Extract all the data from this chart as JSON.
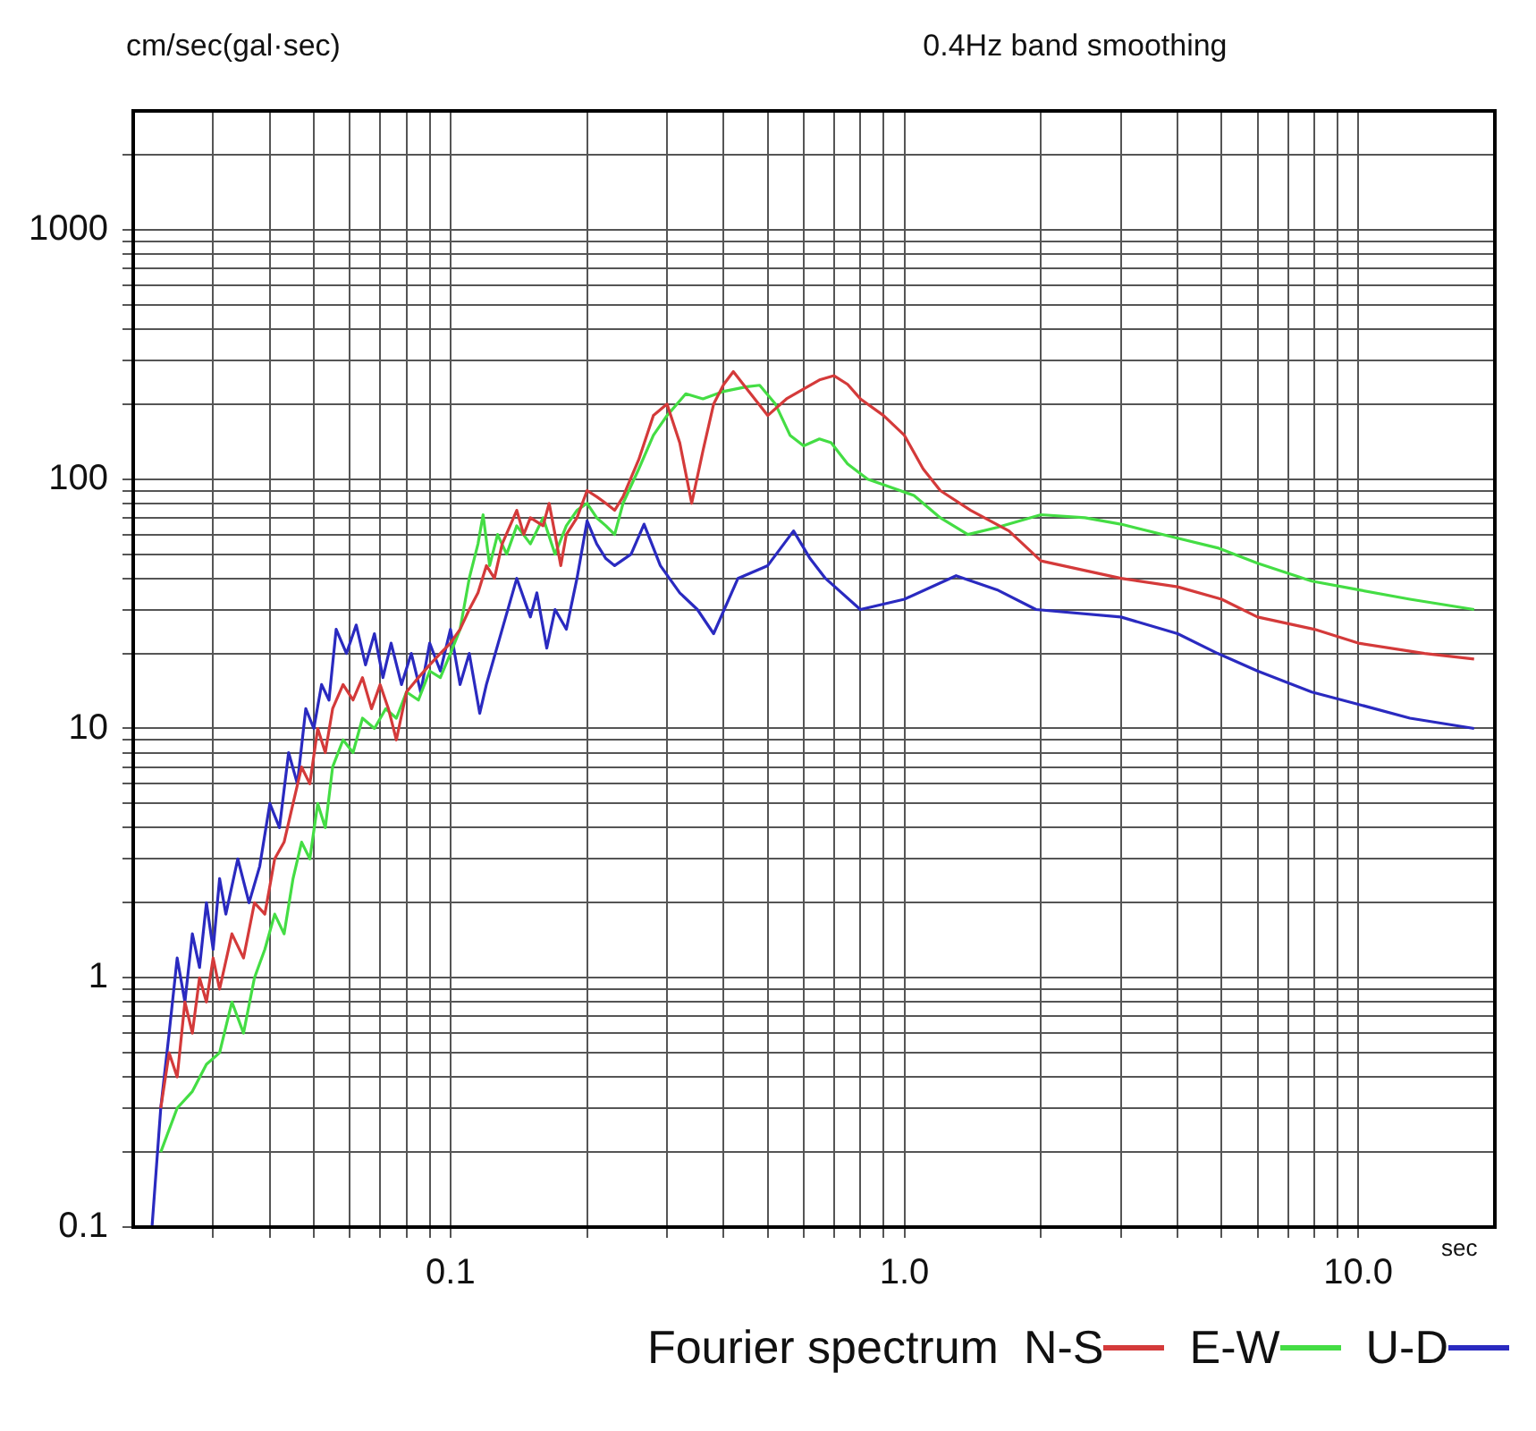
{
  "chart_data": {
    "type": "line",
    "subtitle": "0.4Hz band smoothing",
    "ylabel": "cm/sec(gal·sec)",
    "xlabel": "sec",
    "legend_title": "Fourier spectrum",
    "log": "xy",
    "grid": true,
    "legend": "bottom right",
    "xlim": [
      0.02,
      20
    ],
    "ylim": [
      0.1,
      3000
    ],
    "xticks": [
      {
        "value": 0.03,
        "label": null
      },
      {
        "value": 0.04,
        "label": null
      },
      {
        "value": 0.05,
        "label": null
      },
      {
        "value": 0.06,
        "label": null
      },
      {
        "value": 0.07,
        "label": null
      },
      {
        "value": 0.08,
        "label": null
      },
      {
        "value": 0.09,
        "label": null
      },
      0.1,
      {
        "value": 0.2,
        "label": null
      },
      {
        "value": 0.3,
        "label": null
      },
      {
        "value": 0.4,
        "label": null
      },
      {
        "value": 0.5,
        "label": null
      },
      {
        "value": 0.6,
        "label": null
      },
      {
        "value": 0.7,
        "label": null
      },
      {
        "value": 0.8,
        "label": null
      },
      {
        "value": 0.9,
        "label": null
      },
      {
        "value": 1,
        "label": "1.0"
      },
      {
        "value": 2,
        "label": null
      },
      {
        "value": 3,
        "label": null
      },
      {
        "value": 4,
        "label": null
      },
      {
        "value": 5,
        "label": null
      },
      {
        "value": 6,
        "label": null
      },
      {
        "value": 7,
        "label": null
      },
      {
        "value": 8,
        "label": null
      },
      {
        "value": 9,
        "label": null
      },
      {
        "value": 10,
        "label": "10.0"
      }
    ],
    "yticks": [
      0.1,
      {
        "value": 0.2,
        "label": null
      },
      {
        "value": 0.3,
        "label": null
      },
      {
        "value": 0.4,
        "label": null
      },
      {
        "value": 0.5,
        "label": null
      },
      {
        "value": 0.6,
        "label": null
      },
      {
        "value": 0.7,
        "label": null
      },
      {
        "value": 0.8,
        "label": null
      },
      {
        "value": 0.9,
        "label": null
      },
      1,
      {
        "value": 2,
        "label": null
      },
      {
        "value": 3,
        "label": null
      },
      {
        "value": 4,
        "label": null
      },
      {
        "value": 5,
        "label": null
      },
      {
        "value": 6,
        "label": null
      },
      {
        "value": 7,
        "label": null
      },
      {
        "value": 8,
        "label": null
      },
      {
        "value": 9,
        "label": null
      },
      10,
      {
        "value": 20,
        "label": null
      },
      {
        "value": 30,
        "label": null
      },
      {
        "value": 40,
        "label": null
      },
      {
        "value": 50,
        "label": null
      },
      {
        "value": 60,
        "label": null
      },
      {
        "value": 70,
        "label": null
      },
      {
        "value": 80,
        "label": null
      },
      {
        "value": 90,
        "label": null
      },
      100,
      {
        "value": 200,
        "label": null
      },
      {
        "value": 300,
        "label": null
      },
      {
        "value": 400,
        "label": null
      },
      {
        "value": 500,
        "label": null
      },
      {
        "value": 600,
        "label": null
      },
      {
        "value": 700,
        "label": null
      },
      {
        "value": 800,
        "label": null
      },
      {
        "value": 900,
        "label": null
      },
      1000,
      {
        "value": 2000,
        "label": null
      }
    ],
    "series": [
      {
        "name": "N-S",
        "color": "#d43a3a",
        "x": [
          0.023,
          0.024,
          0.025,
          0.026,
          0.027,
          0.028,
          0.029,
          0.03,
          0.031,
          0.033,
          0.035,
          0.037,
          0.039,
          0.041,
          0.043,
          0.045,
          0.047,
          0.049,
          0.051,
          0.053,
          0.055,
          0.058,
          0.061,
          0.064,
          0.067,
          0.07,
          0.073,
          0.076,
          0.08,
          0.085,
          0.09,
          0.095,
          0.1,
          0.105,
          0.11,
          0.115,
          0.12,
          0.125,
          0.13,
          0.14,
          0.145,
          0.15,
          0.16,
          0.165,
          0.17,
          0.175,
          0.18,
          0.19,
          0.2,
          0.21,
          0.22,
          0.23,
          0.24,
          0.26,
          0.28,
          0.3,
          0.32,
          0.34,
          0.36,
          0.38,
          0.4,
          0.42,
          0.45,
          0.5,
          0.55,
          0.6,
          0.65,
          0.7,
          0.75,
          0.8,
          0.9,
          1,
          1.1,
          1.2,
          1.4,
          1.7,
          2,
          2.5,
          3,
          4,
          5,
          6,
          8,
          10,
          14,
          18
        ],
        "values": [
          0.3,
          0.5,
          0.4,
          0.8,
          0.6,
          1,
          0.8,
          1.2,
          0.9,
          1.5,
          1.2,
          2,
          1.8,
          3,
          3.5,
          5,
          7,
          6,
          10,
          8,
          12,
          15,
          13,
          16,
          12,
          15,
          12,
          9,
          14,
          16,
          18,
          20,
          22,
          25,
          30,
          35,
          45,
          40,
          55,
          75,
          60,
          70,
          65,
          80,
          60,
          45,
          60,
          70,
          90,
          85,
          80,
          75,
          85,
          120,
          180,
          200,
          140,
          80,
          130,
          200,
          240,
          270,
          230,
          180,
          210,
          230,
          250,
          260,
          240,
          210,
          180,
          150,
          110,
          90,
          75,
          62,
          47,
          43,
          40,
          37,
          33,
          28,
          25,
          22,
          20,
          19
        ]
      },
      {
        "name": "E-W",
        "color": "#44dd44",
        "x": [
          0.023,
          0.025,
          0.027,
          0.029,
          0.031,
          0.033,
          0.035,
          0.037,
          0.039,
          0.041,
          0.043,
          0.045,
          0.047,
          0.049,
          0.051,
          0.053,
          0.055,
          0.058,
          0.061,
          0.064,
          0.068,
          0.072,
          0.076,
          0.08,
          0.085,
          0.09,
          0.095,
          0.1,
          0.105,
          0.11,
          0.115,
          0.118,
          0.122,
          0.127,
          0.133,
          0.14,
          0.15,
          0.16,
          0.17,
          0.18,
          0.19,
          0.2,
          0.21,
          0.22,
          0.23,
          0.24,
          0.26,
          0.28,
          0.3,
          0.33,
          0.36,
          0.4,
          0.45,
          0.48,
          0.52,
          0.56,
          0.6,
          0.65,
          0.69,
          0.75,
          0.83,
          0.9,
          1.05,
          1.2,
          1.38,
          1.6,
          2,
          2.5,
          3,
          4,
          4.9,
          6,
          7.9,
          10,
          13,
          18
        ],
        "values": [
          0.2,
          0.3,
          0.35,
          0.45,
          0.5,
          0.8,
          0.6,
          1,
          1.3,
          1.8,
          1.5,
          2.5,
          3.5,
          3,
          5,
          4,
          7,
          9,
          8,
          11,
          10,
          12,
          11,
          14,
          13,
          17,
          16,
          20,
          25,
          40,
          55,
          72,
          45,
          60,
          50,
          65,
          55,
          70,
          50,
          65,
          75,
          80,
          70,
          65,
          60,
          80,
          110,
          150,
          180,
          220,
          210,
          225,
          235,
          238,
          200,
          150,
          136,
          145,
          140,
          115,
          100,
          95,
          86,
          70,
          60,
          64,
          72,
          70,
          66,
          58,
          53,
          46,
          39,
          36,
          33,
          30
        ]
      },
      {
        "name": "U-D",
        "color": "#2a2ac0",
        "x": [
          0.022,
          0.023,
          0.024,
          0.025,
          0.026,
          0.027,
          0.028,
          0.029,
          0.03,
          0.031,
          0.032,
          0.034,
          0.036,
          0.038,
          0.04,
          0.042,
          0.044,
          0.046,
          0.048,
          0.05,
          0.052,
          0.054,
          0.056,
          0.059,
          0.062,
          0.065,
          0.068,
          0.071,
          0.074,
          0.078,
          0.082,
          0.086,
          0.09,
          0.095,
          0.1,
          0.105,
          0.11,
          0.116,
          0.12,
          0.13,
          0.14,
          0.15,
          0.155,
          0.163,
          0.17,
          0.18,
          0.19,
          0.2,
          0.21,
          0.22,
          0.23,
          0.25,
          0.267,
          0.29,
          0.32,
          0.35,
          0.38,
          0.43,
          0.5,
          0.57,
          0.62,
          0.67,
          0.8,
          1,
          1.3,
          1.6,
          1.95,
          3,
          4,
          4.9,
          6,
          7.9,
          10,
          13,
          18
        ],
        "values": [
          0.1,
          0.3,
          0.6,
          1.2,
          0.8,
          1.5,
          1.1,
          2,
          1.3,
          2.5,
          1.8,
          3,
          2,
          2.8,
          5,
          4,
          8,
          6,
          12,
          10,
          15,
          13,
          25,
          20,
          26,
          18,
          24,
          16,
          22,
          15,
          20,
          14,
          22,
          17,
          25,
          15,
          20,
          11.5,
          15,
          25,
          40,
          28,
          35,
          21,
          30,
          25,
          40,
          68,
          55,
          48,
          45,
          50,
          66,
          45,
          35,
          30,
          24,
          40,
          45,
          62,
          48,
          40,
          30,
          33,
          41,
          36,
          30,
          28,
          24,
          20,
          17,
          14,
          12.5,
          11,
          10
        ]
      }
    ]
  }
}
